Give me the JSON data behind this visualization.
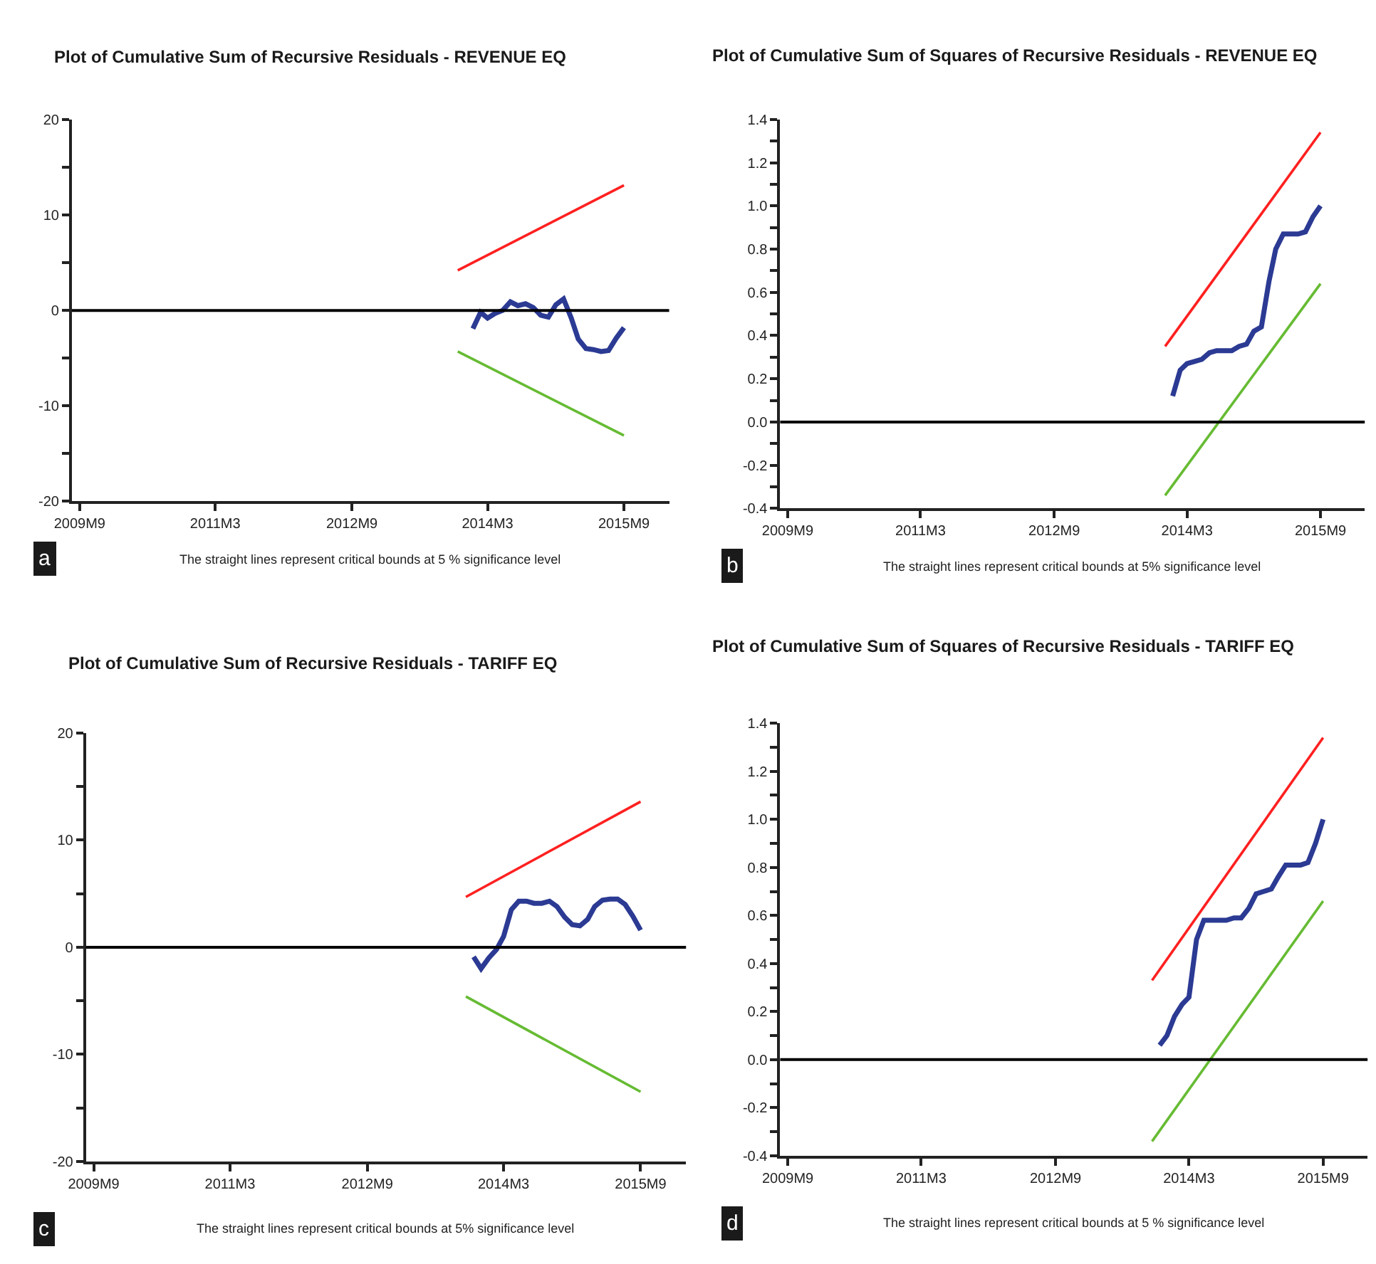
{
  "chart_data": [
    {
      "type": "line",
      "title": "Plot of Cumulative Sum of Recursive Residuals - REVENUE EQ",
      "annotations": [
        "The straight lines represent critical bounds at 5 % significance level",
        "a"
      ],
      "xlim": [
        "2009-08",
        "2016-03"
      ],
      "xticks": [
        {
          "value": "2009-09",
          "label": "2009M9"
        },
        {
          "value": "2011-03",
          "label": "2011M3"
        },
        {
          "value": "2012-09",
          "label": "2012M9"
        },
        {
          "value": "2014-03",
          "label": "2014M3"
        },
        {
          "value": "2015-09",
          "label": "2015M9"
        }
      ],
      "ylim": [
        -20,
        20
      ],
      "yticks": [
        -20,
        {
          "value": -15,
          "label": null
        },
        -10,
        {
          "value": -5,
          "label": null
        },
        0,
        {
          "value": 5,
          "label": null
        },
        10,
        {
          "value": 15,
          "label": null
        },
        20
      ],
      "marker": "none",
      "line_style": "solid",
      "ref_lines": [
        {
          "axis": "y",
          "value": 0,
          "color": "#000000"
        }
      ],
      "series": [
        {
          "color": "#2b3a93",
          "x": [
            "2014-01",
            "2014-02",
            "2014-03",
            "2014-04",
            "2014-05",
            "2014-06",
            "2014-07",
            "2014-08",
            "2014-09",
            "2014-10",
            "2014-11",
            "2014-12",
            "2015-01",
            "2015-02",
            "2015-03",
            "2015-04",
            "2015-05",
            "2015-06",
            "2015-07",
            "2015-08",
            "2015-09"
          ],
          "values": [
            -1.9,
            -0.2,
            -0.8,
            -0.3,
            0.0,
            0.9,
            0.5,
            0.7,
            0.3,
            -0.5,
            -0.7,
            0.6,
            1.2,
            -0.8,
            -3.0,
            -4.0,
            -4.1,
            -4.3,
            -4.2,
            -2.9,
            -1.8
          ]
        },
        {
          "color": "#ff2020",
          "x": [
            "2013-11",
            "2015-09"
          ],
          "values": [
            4.2,
            13.1
          ]
        },
        {
          "color": "#66bb33",
          "x": [
            "2013-11",
            "2015-09"
          ],
          "values": [
            -4.3,
            -13.1
          ]
        }
      ]
    },
    {
      "type": "line",
      "title": "Plot of Cumulative Sum of Squares of Recursive Residuals - REVENUE EQ",
      "annotations": [
        "The straight lines represent critical bounds at 5% significance level",
        "b"
      ],
      "xlim": [
        "2009-08",
        "2016-03"
      ],
      "xticks": [
        {
          "value": "2009-09",
          "label": "2009M9"
        },
        {
          "value": "2011-03",
          "label": "2011M3"
        },
        {
          "value": "2012-09",
          "label": "2012M9"
        },
        {
          "value": "2014-03",
          "label": "2014M3"
        },
        {
          "value": "2015-09",
          "label": "2015M9"
        }
      ],
      "ylim": [
        -0.4,
        1.4
      ],
      "yticks": [
        -0.4,
        {
          "value": -0.3,
          "label": null
        },
        -0.2,
        {
          "value": -0.1,
          "label": null
        },
        {
          "value": 0,
          "label": "0.0"
        },
        {
          "value": 0.1,
          "label": null
        },
        0.2,
        {
          "value": 0.3,
          "label": null
        },
        0.4,
        {
          "value": 0.5,
          "label": null
        },
        0.6,
        {
          "value": 0.7,
          "label": null
        },
        0.8,
        {
          "value": 0.9,
          "label": null
        },
        {
          "value": 1.0,
          "label": "1.0"
        },
        {
          "value": 1.1,
          "label": null
        },
        1.2,
        {
          "value": 1.3,
          "label": null
        },
        1.4
      ],
      "marker": "none",
      "line_style": "solid",
      "ref_lines": [
        {
          "axis": "y",
          "value": 0,
          "color": "#000000"
        }
      ],
      "series": [
        {
          "color": "#2b3a93",
          "x": [
            "2014-01",
            "2014-02",
            "2014-03",
            "2014-04",
            "2014-05",
            "2014-06",
            "2014-07",
            "2014-08",
            "2014-09",
            "2014-10",
            "2014-11",
            "2014-12",
            "2015-01",
            "2015-02",
            "2015-03",
            "2015-04",
            "2015-05",
            "2015-06",
            "2015-07",
            "2015-08",
            "2015-09"
          ],
          "values": [
            0.12,
            0.24,
            0.27,
            0.28,
            0.29,
            0.32,
            0.33,
            0.33,
            0.33,
            0.35,
            0.36,
            0.42,
            0.44,
            0.65,
            0.8,
            0.87,
            0.87,
            0.87,
            0.88,
            0.95,
            1.0
          ]
        },
        {
          "color": "#ff2020",
          "x": [
            "2013-12",
            "2015-09"
          ],
          "values": [
            0.35,
            1.34
          ]
        },
        {
          "color": "#66bb33",
          "x": [
            "2013-12",
            "2015-09"
          ],
          "values": [
            -0.34,
            0.64
          ]
        }
      ]
    },
    {
      "type": "line",
      "title": "Plot of Cumulative Sum of Recursive Residuals - TARIFF EQ",
      "annotations": [
        "The straight lines represent critical bounds at 5% significance level",
        "c"
      ],
      "xlim": [
        "2009-08",
        "2016-03"
      ],
      "xticks": [
        {
          "value": "2009-09",
          "label": "2009M9"
        },
        {
          "value": "2011-03",
          "label": "2011M3"
        },
        {
          "value": "2012-09",
          "label": "2012M9"
        },
        {
          "value": "2014-03",
          "label": "2014M3"
        },
        {
          "value": "2015-09",
          "label": "2015M9"
        }
      ],
      "ylim": [
        -20,
        20
      ],
      "yticks": [
        -20,
        {
          "value": -15,
          "label": null
        },
        -10,
        {
          "value": -5,
          "label": null
        },
        0,
        {
          "value": 5,
          "label": null
        },
        10,
        {
          "value": 15,
          "label": null
        },
        20
      ],
      "marker": "none",
      "line_style": "solid",
      "ref_lines": [
        {
          "axis": "y",
          "value": 0,
          "color": "#000000"
        }
      ],
      "series": [
        {
          "color": "#2b3a93",
          "x": [
            "2013-11",
            "2013-12",
            "2014-01",
            "2014-02",
            "2014-03",
            "2014-04",
            "2014-05",
            "2014-06",
            "2014-07",
            "2014-08",
            "2014-09",
            "2014-10",
            "2014-11",
            "2014-12",
            "2015-01",
            "2015-02",
            "2015-03",
            "2015-04",
            "2015-05",
            "2015-06",
            "2015-07",
            "2015-08",
            "2015-09"
          ],
          "values": [
            -0.9,
            -2.0,
            -1.0,
            -0.2,
            1.0,
            3.5,
            4.3,
            4.3,
            4.1,
            4.1,
            4.3,
            3.8,
            2.8,
            2.1,
            2.0,
            2.6,
            3.8,
            4.4,
            4.5,
            4.5,
            4.0,
            2.9,
            1.6
          ]
        },
        {
          "color": "#ff2020",
          "x": [
            "2013-10",
            "2015-09"
          ],
          "values": [
            4.7,
            13.6
          ]
        },
        {
          "color": "#66bb33",
          "x": [
            "2013-10",
            "2015-09"
          ],
          "values": [
            -4.6,
            -13.5
          ]
        }
      ]
    },
    {
      "type": "line",
      "title": "Plot of Cumulative Sum of Squares of Recursive Residuals - TARIFF EQ",
      "annotations": [
        "The straight lines represent critical bounds at 5 % significance level",
        "d"
      ],
      "xlim": [
        "2009-08",
        "2016-03"
      ],
      "xticks": [
        {
          "value": "2009-09",
          "label": "2009M9"
        },
        {
          "value": "2011-03",
          "label": "2011M3"
        },
        {
          "value": "2012-09",
          "label": "2012M9"
        },
        {
          "value": "2014-03",
          "label": "2014M3"
        },
        {
          "value": "2015-09",
          "label": "2015M9"
        }
      ],
      "ylim": [
        -0.4,
        1.4
      ],
      "yticks": [
        -0.4,
        {
          "value": -0.3,
          "label": null
        },
        -0.2,
        {
          "value": -0.1,
          "label": null
        },
        {
          "value": 0,
          "label": "0.0"
        },
        {
          "value": 0.1,
          "label": null
        },
        0.2,
        {
          "value": 0.3,
          "label": null
        },
        0.4,
        {
          "value": 0.5,
          "label": null
        },
        0.6,
        {
          "value": 0.7,
          "label": null
        },
        0.8,
        {
          "value": 0.9,
          "label": null
        },
        {
          "value": 1.0,
          "label": "1.0"
        },
        {
          "value": 1.1,
          "label": null
        },
        1.2,
        {
          "value": 1.3,
          "label": null
        },
        1.4
      ],
      "marker": "none",
      "line_style": "solid",
      "ref_lines": [
        {
          "axis": "y",
          "value": 0,
          "color": "#000000"
        }
      ],
      "series": [
        {
          "color": "#2b3a93",
          "x": [
            "2013-11",
            "2013-12",
            "2014-01",
            "2014-02",
            "2014-03",
            "2014-04",
            "2014-05",
            "2014-06",
            "2014-07",
            "2014-08",
            "2014-09",
            "2014-10",
            "2014-11",
            "2014-12",
            "2015-01",
            "2015-02",
            "2015-03",
            "2015-04",
            "2015-05",
            "2015-06",
            "2015-07",
            "2015-08",
            "2015-09"
          ],
          "values": [
            0.06,
            0.1,
            0.18,
            0.23,
            0.26,
            0.5,
            0.58,
            0.58,
            0.58,
            0.58,
            0.59,
            0.59,
            0.63,
            0.69,
            0.7,
            0.71,
            0.76,
            0.81,
            0.81,
            0.81,
            0.82,
            0.9,
            1.0
          ]
        },
        {
          "color": "#ff2020",
          "x": [
            "2013-10",
            "2015-09"
          ],
          "values": [
            0.33,
            1.34
          ]
        },
        {
          "color": "#66bb33",
          "x": [
            "2013-10",
            "2015-09"
          ],
          "values": [
            -0.34,
            0.66
          ]
        }
      ]
    }
  ]
}
